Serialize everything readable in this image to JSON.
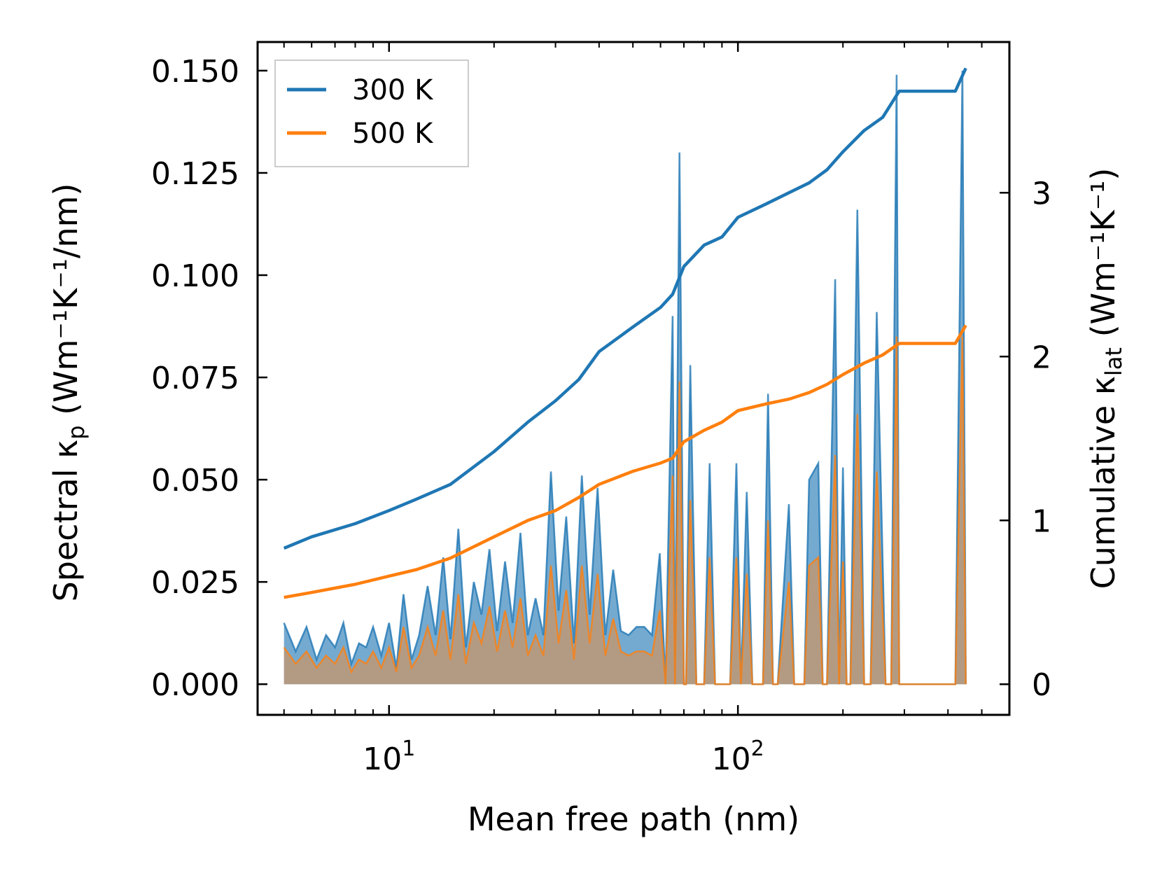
{
  "chart_data": {
    "type": "line",
    "title": "",
    "xlabel": "Mean free path (nm)",
    "ylabel_left": {
      "base": "Spectral κ",
      "sub": "p",
      "units": " (Wm⁻¹K⁻¹/nm)"
    },
    "ylabel_right": {
      "base": "Cumulative κ",
      "sub": "lat",
      "units": " (Wm⁻¹K⁻¹)"
    },
    "xscale": "log",
    "xlim": [
      4.2,
      600
    ],
    "ylim_left": [
      -0.0075,
      0.157
    ],
    "ylim_right": [
      -0.187,
      3.92
    ],
    "x_ticks": [
      {
        "value": 10,
        "base": "10",
        "exp": "1"
      },
      {
        "value": 100,
        "base": "10",
        "exp": "2"
      }
    ],
    "yticks_left": [
      "0.000",
      "0.025",
      "0.050",
      "0.075",
      "0.100",
      "0.125",
      "0.150"
    ],
    "yticks_right": [
      "0",
      "1",
      "2",
      "3"
    ],
    "legend": {
      "position": "top-left",
      "entries": [
        "300 K",
        "500 K"
      ]
    },
    "colors": {
      "300K": "#1f77b4",
      "500K": "#ff7f0e",
      "fill_300K": "#5d9bc8",
      "fill_500K": "#c8956a"
    },
    "cumulative": [
      {
        "name": "300 K",
        "axis": "right",
        "x": [
          5,
          6,
          8,
          10,
          12,
          15,
          20,
          25,
          30,
          35,
          40,
          50,
          60,
          65,
          70,
          80,
          90,
          100,
          120,
          140,
          160,
          180,
          200,
          230,
          260,
          290,
          330,
          420,
          450
        ],
        "y": [
          0.83,
          0.9,
          0.98,
          1.06,
          1.13,
          1.22,
          1.42,
          1.6,
          1.73,
          1.86,
          2.03,
          2.18,
          2.3,
          2.38,
          2.55,
          2.68,
          2.73,
          2.85,
          2.93,
          3.0,
          3.06,
          3.14,
          3.25,
          3.38,
          3.46,
          3.62,
          3.62,
          3.62,
          3.76
        ]
      },
      {
        "name": "500 K",
        "axis": "right",
        "x": [
          5,
          6,
          8,
          10,
          12,
          15,
          20,
          25,
          30,
          35,
          40,
          50,
          60,
          65,
          70,
          80,
          90,
          100,
          120,
          140,
          160,
          180,
          200,
          230,
          260,
          290,
          330,
          420,
          450
        ],
        "y": [
          0.53,
          0.56,
          0.61,
          0.66,
          0.7,
          0.77,
          0.9,
          1.0,
          1.06,
          1.14,
          1.22,
          1.3,
          1.35,
          1.38,
          1.48,
          1.55,
          1.6,
          1.67,
          1.71,
          1.74,
          1.78,
          1.83,
          1.89,
          1.96,
          2.01,
          2.08,
          2.08,
          2.08,
          2.19
        ]
      }
    ],
    "spectral": [
      {
        "name": "300 K",
        "axis": "left",
        "x": [
          5,
          5.4,
          5.8,
          6.2,
          6.6,
          7.0,
          7.4,
          7.8,
          8.2,
          8.6,
          9.0,
          9.5,
          10,
          10.5,
          11,
          11.6,
          12.2,
          12.9,
          13.6,
          14.3,
          15.0,
          15.8,
          16.6,
          17.5,
          18.4,
          19.4,
          20.4,
          21.5,
          22.6,
          23.8,
          25.0,
          26.3,
          27.7,
          29.1,
          30.6,
          32.2,
          33.9,
          35.7,
          37.6,
          39.6,
          41.7,
          43.9,
          46.2,
          48.6,
          51.2,
          53.9,
          56.7,
          59.7,
          62,
          65,
          66,
          68,
          70,
          71,
          73,
          76,
          80,
          83,
          86,
          90,
          95,
          99,
          102,
          106,
          110,
          118,
          122,
          126,
          130,
          140,
          145,
          150,
          155,
          160,
          170,
          175,
          180,
          190,
          195,
          200,
          205,
          210,
          220,
          230,
          240,
          250,
          265,
          275,
          285,
          290,
          295,
          300,
          420,
          440,
          450
        ],
        "y": [
          0.015,
          0.008,
          0.014,
          0.006,
          0.012,
          0.009,
          0.015,
          0.005,
          0.01,
          0.009,
          0.014,
          0.007,
          0.015,
          0.004,
          0.022,
          0.006,
          0.012,
          0.024,
          0.012,
          0.031,
          0.011,
          0.038,
          0.009,
          0.025,
          0.017,
          0.033,
          0.013,
          0.03,
          0.015,
          0.037,
          0.012,
          0.021,
          0.012,
          0.052,
          0.018,
          0.041,
          0.01,
          0.051,
          0.017,
          0.048,
          0.012,
          0.028,
          0.013,
          0.012,
          0.014,
          0.014,
          0.012,
          0.032,
          0.0,
          0.09,
          0.0,
          0.13,
          0.0,
          0.0,
          0.078,
          0.0,
          0.0,
          0.054,
          0.0,
          0.0,
          0.0,
          0.054,
          0.0,
          0.047,
          0.0,
          0.0,
          0.071,
          0.0,
          0.0,
          0.044,
          0.0,
          0.0,
          0.0,
          0.05,
          0.054,
          0.0,
          0.0,
          0.099,
          0.0,
          0.053,
          0.0,
          0.0,
          0.116,
          0.0,
          0.0,
          0.091,
          0.0,
          0.0,
          0.149,
          0.0,
          0.0,
          0.0,
          0.0,
          0.15,
          0.0
        ]
      },
      {
        "name": "500 K",
        "axis": "left",
        "x": [
          5,
          5.4,
          5.8,
          6.2,
          6.6,
          7.0,
          7.4,
          7.8,
          8.2,
          8.6,
          9.0,
          9.5,
          10,
          10.5,
          11,
          11.6,
          12.2,
          12.9,
          13.6,
          14.3,
          15.0,
          15.8,
          16.6,
          17.5,
          18.4,
          19.4,
          20.4,
          21.5,
          22.6,
          23.8,
          25.0,
          26.3,
          27.7,
          29.1,
          30.6,
          32.2,
          33.9,
          35.7,
          37.6,
          39.6,
          41.7,
          43.9,
          46.2,
          48.6,
          51.2,
          53.9,
          56.7,
          59.7,
          62,
          65,
          66,
          68,
          70,
          71,
          73,
          76,
          80,
          83,
          86,
          90,
          95,
          99,
          102,
          106,
          110,
          118,
          122,
          126,
          130,
          140,
          145,
          150,
          155,
          160,
          170,
          175,
          180,
          190,
          195,
          200,
          205,
          210,
          220,
          230,
          240,
          250,
          265,
          275,
          285,
          290,
          295,
          300,
          420,
          440,
          450
        ],
        "y": [
          0.009,
          0.005,
          0.008,
          0.004,
          0.007,
          0.005,
          0.009,
          0.003,
          0.006,
          0.005,
          0.008,
          0.004,
          0.009,
          0.003,
          0.014,
          0.004,
          0.007,
          0.014,
          0.007,
          0.018,
          0.006,
          0.022,
          0.005,
          0.015,
          0.01,
          0.019,
          0.008,
          0.018,
          0.009,
          0.021,
          0.007,
          0.012,
          0.007,
          0.029,
          0.01,
          0.023,
          0.006,
          0.029,
          0.01,
          0.027,
          0.007,
          0.016,
          0.008,
          0.007,
          0.008,
          0.008,
          0.007,
          0.018,
          0.0,
          0.051,
          0.0,
          0.074,
          0.0,
          0.0,
          0.045,
          0.0,
          0.0,
          0.031,
          0.0,
          0.0,
          0.0,
          0.031,
          0.0,
          0.027,
          0.0,
          0.0,
          0.04,
          0.0,
          0.0,
          0.025,
          0.0,
          0.0,
          0.0,
          0.029,
          0.031,
          0.0,
          0.0,
          0.056,
          0.0,
          0.03,
          0.0,
          0.0,
          0.066,
          0.0,
          0.0,
          0.052,
          0.0,
          0.0,
          0.085,
          0.0,
          0.0,
          0.0,
          0.0,
          0.085,
          0.0
        ]
      }
    ]
  }
}
